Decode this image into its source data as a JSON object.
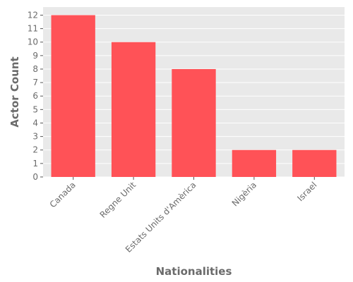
{
  "chart_data": {
    "type": "bar",
    "title": "",
    "xlabel": "Nationalities",
    "ylabel": "Actor Count",
    "categories": [
      "Canada",
      "Regne Unit",
      "Estats Units d'Amèrica",
      "Nigèria",
      "Israel"
    ],
    "values": [
      12,
      10,
      8,
      2,
      2
    ],
    "ylim": [
      0,
      12.6
    ],
    "yticks": [
      0,
      1,
      2,
      3,
      4,
      5,
      6,
      7,
      8,
      9,
      10,
      11,
      12
    ],
    "grid": true,
    "colors": {
      "bar": "#ff5257",
      "plot_background": "#e9e9e9",
      "grid": "#ffffff",
      "text": "#6b6b6b"
    }
  }
}
